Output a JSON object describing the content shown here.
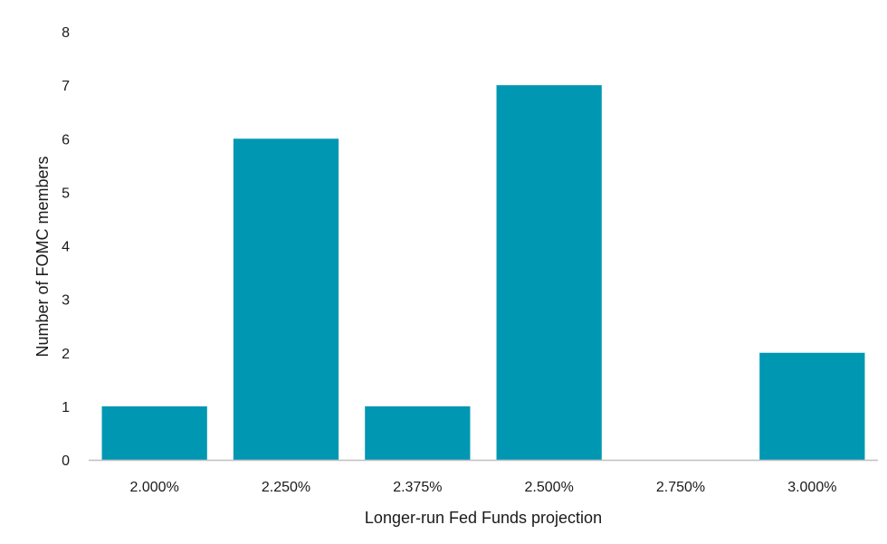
{
  "chart_data": {
    "type": "bar",
    "title": "",
    "xlabel": "Longer-run Fed Funds projection",
    "ylabel": "Number of FOMC members",
    "categories": [
      "2.000%",
      "2.250%",
      "2.375%",
      "2.500%",
      "2.750%",
      "3.000%"
    ],
    "values": [
      1,
      6,
      1,
      7,
      0,
      2
    ],
    "ylim": [
      0,
      8
    ],
    "yticks": [
      0,
      1,
      2,
      3,
      4,
      5,
      6,
      7,
      8
    ],
    "grid": false,
    "legend": "none",
    "bar_color": "#0097b2",
    "axis_color": "#bfbfbf"
  }
}
